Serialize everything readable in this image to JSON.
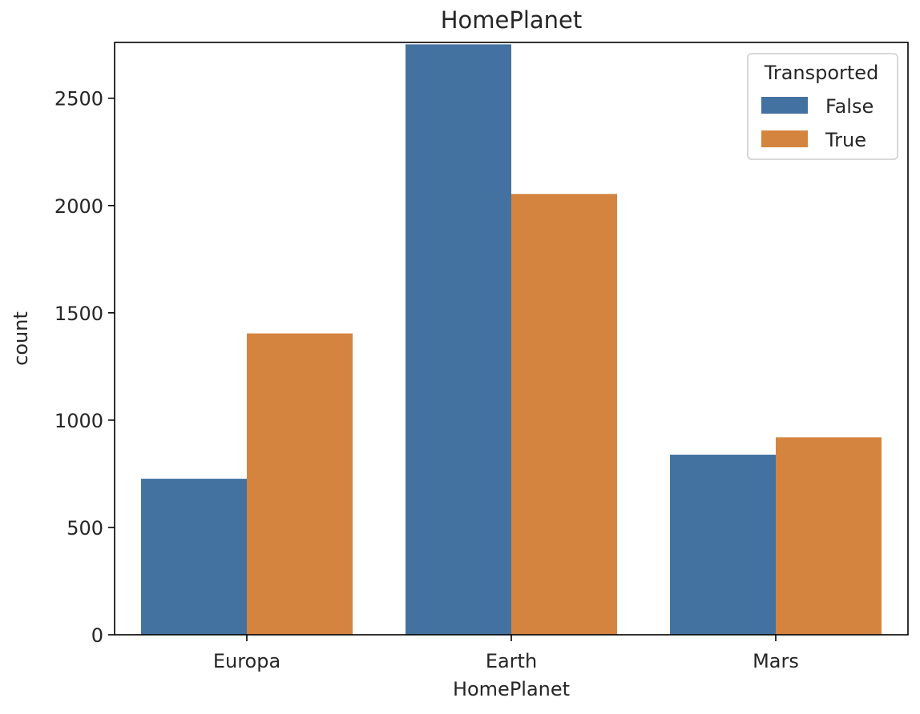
{
  "chart_data": {
    "type": "bar",
    "title": "HomePlanet",
    "xlabel": "HomePlanet",
    "ylabel": "count",
    "categories": [
      "Europa",
      "Earth",
      "Mars"
    ],
    "series": [
      {
        "name": "False",
        "values": [
          727,
          2751,
          839
        ],
        "color": "#4372a0"
      },
      {
        "name": "True",
        "values": [
          1404,
          2054,
          920
        ],
        "color": "#d5843f"
      }
    ],
    "ylim": [
      0,
      2760
    ],
    "yticks": [
      0,
      500,
      1000,
      1500,
      2000,
      2500
    ],
    "ytick_labels": [
      "0",
      "500",
      "1000",
      "1500",
      "2000",
      "2500"
    ],
    "grid": false,
    "legend": {
      "title": "Transported",
      "placement": "top-right"
    }
  }
}
